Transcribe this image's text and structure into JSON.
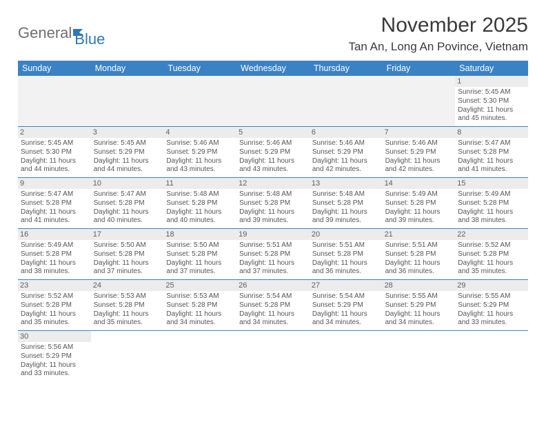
{
  "brand": {
    "part1": "General",
    "part2": "Blue"
  },
  "title": "November 2025",
  "location": "Tan An, Long An Povince, Vietnam",
  "colors": {
    "header_bg": "#3b82c4",
    "header_text": "#ffffff",
    "daynum_bg": "#ececec",
    "body_text": "#555555",
    "page_bg": "#ffffff"
  },
  "typography": {
    "title_fontsize": 30,
    "location_fontsize": 17,
    "dayheader_fontsize": 12.5,
    "cell_fontsize": 10
  },
  "day_names": [
    "Sunday",
    "Monday",
    "Tuesday",
    "Wednesday",
    "Thursday",
    "Friday",
    "Saturday"
  ],
  "weeks": [
    [
      null,
      null,
      null,
      null,
      null,
      null,
      {
        "n": "1",
        "sunrise": "Sunrise: 5:45 AM",
        "sunset": "Sunset: 5:30 PM",
        "daylight1": "Daylight: 11 hours",
        "daylight2": "and 45 minutes."
      }
    ],
    [
      {
        "n": "2",
        "sunrise": "Sunrise: 5:45 AM",
        "sunset": "Sunset: 5:30 PM",
        "daylight1": "Daylight: 11 hours",
        "daylight2": "and 44 minutes."
      },
      {
        "n": "3",
        "sunrise": "Sunrise: 5:45 AM",
        "sunset": "Sunset: 5:29 PM",
        "daylight1": "Daylight: 11 hours",
        "daylight2": "and 44 minutes."
      },
      {
        "n": "4",
        "sunrise": "Sunrise: 5:46 AM",
        "sunset": "Sunset: 5:29 PM",
        "daylight1": "Daylight: 11 hours",
        "daylight2": "and 43 minutes."
      },
      {
        "n": "5",
        "sunrise": "Sunrise: 5:46 AM",
        "sunset": "Sunset: 5:29 PM",
        "daylight1": "Daylight: 11 hours",
        "daylight2": "and 43 minutes."
      },
      {
        "n": "6",
        "sunrise": "Sunrise: 5:46 AM",
        "sunset": "Sunset: 5:29 PM",
        "daylight1": "Daylight: 11 hours",
        "daylight2": "and 42 minutes."
      },
      {
        "n": "7",
        "sunrise": "Sunrise: 5:46 AM",
        "sunset": "Sunset: 5:29 PM",
        "daylight1": "Daylight: 11 hours",
        "daylight2": "and 42 minutes."
      },
      {
        "n": "8",
        "sunrise": "Sunrise: 5:47 AM",
        "sunset": "Sunset: 5:28 PM",
        "daylight1": "Daylight: 11 hours",
        "daylight2": "and 41 minutes."
      }
    ],
    [
      {
        "n": "9",
        "sunrise": "Sunrise: 5:47 AM",
        "sunset": "Sunset: 5:28 PM",
        "daylight1": "Daylight: 11 hours",
        "daylight2": "and 41 minutes."
      },
      {
        "n": "10",
        "sunrise": "Sunrise: 5:47 AM",
        "sunset": "Sunset: 5:28 PM",
        "daylight1": "Daylight: 11 hours",
        "daylight2": "and 40 minutes."
      },
      {
        "n": "11",
        "sunrise": "Sunrise: 5:48 AM",
        "sunset": "Sunset: 5:28 PM",
        "daylight1": "Daylight: 11 hours",
        "daylight2": "and 40 minutes."
      },
      {
        "n": "12",
        "sunrise": "Sunrise: 5:48 AM",
        "sunset": "Sunset: 5:28 PM",
        "daylight1": "Daylight: 11 hours",
        "daylight2": "and 39 minutes."
      },
      {
        "n": "13",
        "sunrise": "Sunrise: 5:48 AM",
        "sunset": "Sunset: 5:28 PM",
        "daylight1": "Daylight: 11 hours",
        "daylight2": "and 39 minutes."
      },
      {
        "n": "14",
        "sunrise": "Sunrise: 5:49 AM",
        "sunset": "Sunset: 5:28 PM",
        "daylight1": "Daylight: 11 hours",
        "daylight2": "and 39 minutes."
      },
      {
        "n": "15",
        "sunrise": "Sunrise: 5:49 AM",
        "sunset": "Sunset: 5:28 PM",
        "daylight1": "Daylight: 11 hours",
        "daylight2": "and 38 minutes."
      }
    ],
    [
      {
        "n": "16",
        "sunrise": "Sunrise: 5:49 AM",
        "sunset": "Sunset: 5:28 PM",
        "daylight1": "Daylight: 11 hours",
        "daylight2": "and 38 minutes."
      },
      {
        "n": "17",
        "sunrise": "Sunrise: 5:50 AM",
        "sunset": "Sunset: 5:28 PM",
        "daylight1": "Daylight: 11 hours",
        "daylight2": "and 37 minutes."
      },
      {
        "n": "18",
        "sunrise": "Sunrise: 5:50 AM",
        "sunset": "Sunset: 5:28 PM",
        "daylight1": "Daylight: 11 hours",
        "daylight2": "and 37 minutes."
      },
      {
        "n": "19",
        "sunrise": "Sunrise: 5:51 AM",
        "sunset": "Sunset: 5:28 PM",
        "daylight1": "Daylight: 11 hours",
        "daylight2": "and 37 minutes."
      },
      {
        "n": "20",
        "sunrise": "Sunrise: 5:51 AM",
        "sunset": "Sunset: 5:28 PM",
        "daylight1": "Daylight: 11 hours",
        "daylight2": "and 36 minutes."
      },
      {
        "n": "21",
        "sunrise": "Sunrise: 5:51 AM",
        "sunset": "Sunset: 5:28 PM",
        "daylight1": "Daylight: 11 hours",
        "daylight2": "and 36 minutes."
      },
      {
        "n": "22",
        "sunrise": "Sunrise: 5:52 AM",
        "sunset": "Sunset: 5:28 PM",
        "daylight1": "Daylight: 11 hours",
        "daylight2": "and 35 minutes."
      }
    ],
    [
      {
        "n": "23",
        "sunrise": "Sunrise: 5:52 AM",
        "sunset": "Sunset: 5:28 PM",
        "daylight1": "Daylight: 11 hours",
        "daylight2": "and 35 minutes."
      },
      {
        "n": "24",
        "sunrise": "Sunrise: 5:53 AM",
        "sunset": "Sunset: 5:28 PM",
        "daylight1": "Daylight: 11 hours",
        "daylight2": "and 35 minutes."
      },
      {
        "n": "25",
        "sunrise": "Sunrise: 5:53 AM",
        "sunset": "Sunset: 5:28 PM",
        "daylight1": "Daylight: 11 hours",
        "daylight2": "and 34 minutes."
      },
      {
        "n": "26",
        "sunrise": "Sunrise: 5:54 AM",
        "sunset": "Sunset: 5:28 PM",
        "daylight1": "Daylight: 11 hours",
        "daylight2": "and 34 minutes."
      },
      {
        "n": "27",
        "sunrise": "Sunrise: 5:54 AM",
        "sunset": "Sunset: 5:29 PM",
        "daylight1": "Daylight: 11 hours",
        "daylight2": "and 34 minutes."
      },
      {
        "n": "28",
        "sunrise": "Sunrise: 5:55 AM",
        "sunset": "Sunset: 5:29 PM",
        "daylight1": "Daylight: 11 hours",
        "daylight2": "and 34 minutes."
      },
      {
        "n": "29",
        "sunrise": "Sunrise: 5:55 AM",
        "sunset": "Sunset: 5:29 PM",
        "daylight1": "Daylight: 11 hours",
        "daylight2": "and 33 minutes."
      }
    ],
    [
      {
        "n": "30",
        "sunrise": "Sunrise: 5:56 AM",
        "sunset": "Sunset: 5:29 PM",
        "daylight1": "Daylight: 11 hours",
        "daylight2": "and 33 minutes."
      },
      null,
      null,
      null,
      null,
      null,
      null
    ]
  ]
}
